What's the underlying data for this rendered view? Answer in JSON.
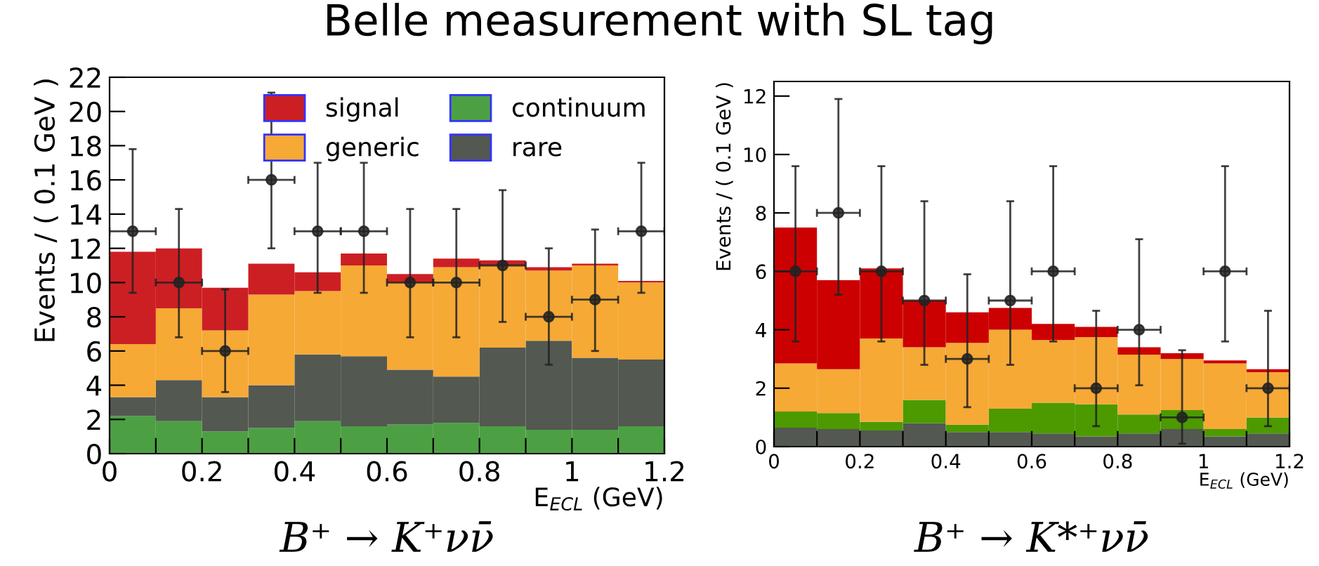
{
  "chart_data": [
    {
      "type": "bar",
      "title": "Belle measurement with SL tag",
      "xlabel": "E$_{ECL}$ (GeV)",
      "ylabel": "Events / ( 0.1 GeV )",
      "stacked": true,
      "legend": "top right",
      "x": [
        0.05,
        0.15,
        0.25,
        0.35,
        0.45,
        0.55,
        0.65,
        0.75,
        0.85,
        0.95,
        1.05,
        1.15
      ],
      "xlim": [
        0,
        1.2
      ],
      "xticks": [
        0,
        {
          "value": 0.1,
          "label": null
        },
        0.2,
        {
          "value": 0.3,
          "label": null
        },
        0.4,
        {
          "value": 0.5,
          "label": null
        },
        0.6,
        {
          "value": 0.7,
          "label": null
        },
        0.8,
        {
          "value": 0.9,
          "label": null
        },
        1,
        {
          "value": 1.1,
          "label": null
        },
        1.2
      ],
      "ylim": [
        0,
        22
      ],
      "yticks": [
        0,
        2,
        4,
        6,
        8,
        10,
        12,
        14,
        16,
        18,
        20,
        22
      ],
      "annotations": [
        "B⁺ → K⁺νν̄"
      ],
      "series": [
        {
          "name": "continuum",
          "color": "#4ca043",
          "values": [
            2.2,
            1.9,
            1.3,
            1.5,
            1.9,
            1.6,
            1.7,
            1.8,
            1.6,
            1.4,
            1.4,
            1.6
          ]
        },
        {
          "name": "rare",
          "color": "#535851",
          "values": [
            1.1,
            2.4,
            2.0,
            2.5,
            3.9,
            4.1,
            3.2,
            2.7,
            4.6,
            5.2,
            4.2,
            3.9
          ]
        },
        {
          "name": "generic",
          "color": "#f6a935",
          "values": [
            3.1,
            4.2,
            3.9,
            5.3,
            3.7,
            5.3,
            5.1,
            6.4,
            4.8,
            4.1,
            5.4,
            4.5
          ]
        },
        {
          "name": "signal",
          "color": "#cc1f24",
          "values": [
            5.4,
            3.5,
            2.5,
            1.8,
            1.1,
            0.7,
            0.5,
            0.5,
            0.3,
            0.2,
            0.1,
            0.1
          ]
        },
        {
          "type": "scatter",
          "color": "#222222",
          "marker": "circle",
          "x": [
            0.05,
            0.15,
            0.25,
            0.35,
            0.45,
            0.55,
            0.65,
            0.75,
            0.85,
            0.95,
            1.05,
            1.15
          ],
          "values": [
            13,
            10,
            6,
            16,
            13,
            13,
            10,
            10,
            11,
            8,
            9,
            13
          ],
          "errors": [
            [
              9.4,
              17.8
            ],
            [
              6.8,
              14.3
            ],
            [
              3.6,
              9.6
            ],
            [
              12,
              21.1
            ],
            [
              9.4,
              17
            ],
            [
              9.4,
              17
            ],
            [
              6.8,
              14.3
            ],
            [
              6.8,
              14.3
            ],
            [
              7.7,
              15.4
            ],
            [
              5.2,
              12
            ],
            [
              6,
              13.1
            ],
            [
              9.4,
              17
            ]
          ],
          "xerrors": [
            0.05,
            0.05,
            0.05,
            0.05,
            0.05,
            0.05,
            0.05,
            0.05,
            0.05,
            0.05,
            0.05,
            0.05
          ]
        }
      ]
    },
    {
      "type": "bar",
      "xlabel": "E$_{ECL}$ (GeV)",
      "ylabel": "Events / ( 0.1 GeV )",
      "stacked": true,
      "x": [
        0.05,
        0.15,
        0.25,
        0.35,
        0.45,
        0.55,
        0.65,
        0.75,
        0.85,
        0.95,
        1.05,
        1.15
      ],
      "xlim": [
        0,
        1.2
      ],
      "xticks": [
        0,
        {
          "value": 0.1,
          "label": null
        },
        0.2,
        {
          "value": 0.3,
          "label": null
        },
        0.4,
        {
          "value": 0.5,
          "label": null
        },
        0.6,
        {
          "value": 0.7,
          "label": null
        },
        0.8,
        {
          "value": 0.9,
          "label": null
        },
        1,
        {
          "value": 1.1,
          "label": null
        },
        1.2
      ],
      "ylim": [
        0,
        12.5
      ],
      "yticks": [
        0,
        2,
        4,
        6,
        8,
        10,
        12
      ],
      "annotations": [
        "B⁺ → K*⁺νν̄"
      ],
      "series": [
        {
          "color": "#535851",
          "values": [
            0.65,
            0.6,
            0.55,
            0.8,
            0.5,
            0.5,
            0.45,
            0.35,
            0.45,
            0.6,
            0.35,
            0.45
          ]
        },
        {
          "color": "#4c9a00",
          "values": [
            0.55,
            0.55,
            0.3,
            0.8,
            0.25,
            0.8,
            1.05,
            1.1,
            0.65,
            0.65,
            0.25,
            0.55
          ]
        },
        {
          "color": "#f6a935",
          "values": [
            1.65,
            1.5,
            2.85,
            1.8,
            2.8,
            2.7,
            2.15,
            2.3,
            2.05,
            1.75,
            2.25,
            1.55
          ]
        },
        {
          "color": "#cc0000",
          "values": [
            4.65,
            3.05,
            2.4,
            1.6,
            1.05,
            0.75,
            0.55,
            0.35,
            0.25,
            0.2,
            0.1,
            0.1
          ]
        },
        {
          "type": "scatter",
          "color": "#222222",
          "marker": "circle",
          "x": [
            0.05,
            0.15,
            0.25,
            0.35,
            0.45,
            0.55,
            0.65,
            0.75,
            0.85,
            0.95,
            1.05,
            1.15
          ],
          "values": [
            6,
            8,
            6,
            5,
            3,
            5,
            6,
            2,
            4,
            1,
            6,
            2
          ],
          "errors": [
            [
              3.6,
              9.6
            ],
            [
              5.2,
              11.9
            ],
            [
              3.6,
              9.6
            ],
            [
              2.8,
              8.4
            ],
            [
              1.35,
              5.9
            ],
            [
              2.8,
              8.4
            ],
            [
              3.6,
              9.6
            ],
            [
              0.7,
              4.65
            ],
            [
              2.1,
              7.1
            ],
            [
              0.1,
              3.3
            ],
            [
              3.6,
              9.6
            ],
            [
              0.7,
              4.65
            ]
          ],
          "xerrors": [
            0.05,
            0.05,
            0.05,
            0.05,
            0.05,
            0.05,
            0.05,
            0.05,
            0.05,
            0.05,
            0.05,
            0.05
          ]
        }
      ]
    }
  ]
}
